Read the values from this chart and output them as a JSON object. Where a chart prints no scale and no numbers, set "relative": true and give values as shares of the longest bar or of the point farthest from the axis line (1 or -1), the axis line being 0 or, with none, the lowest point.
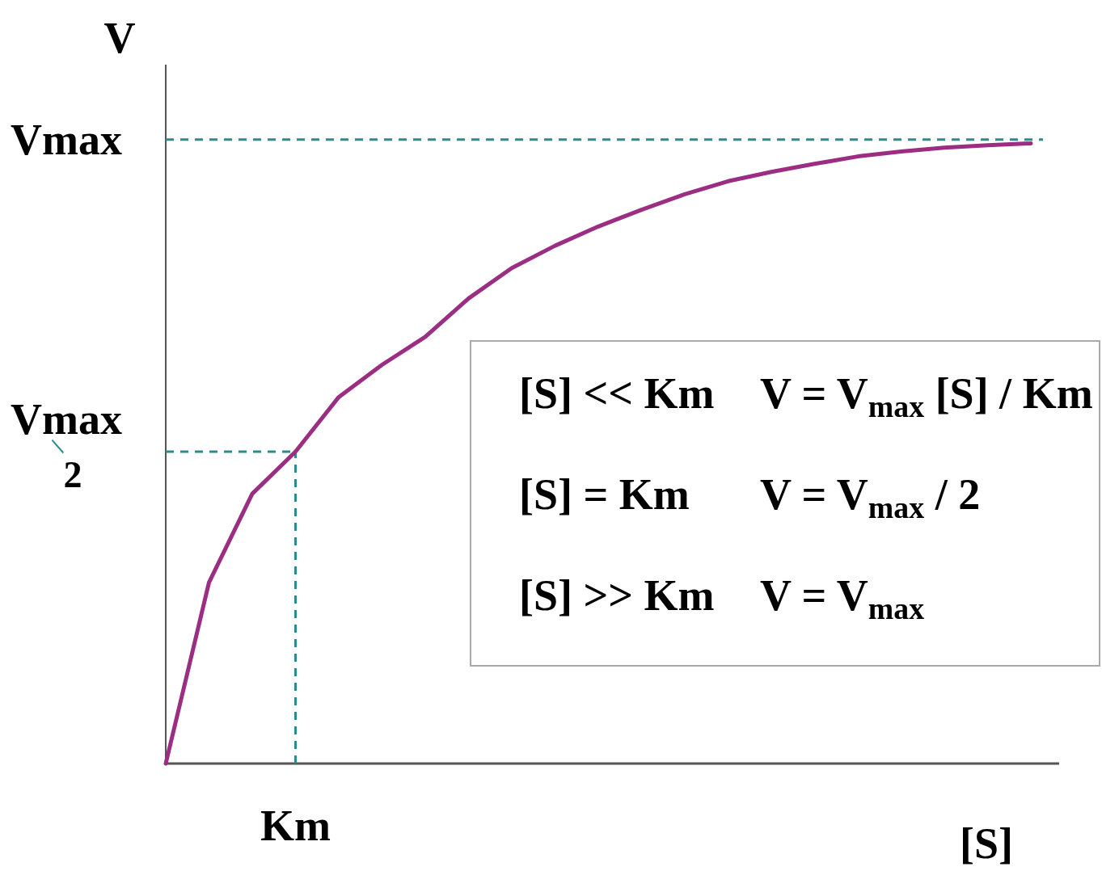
{
  "chart_data": {
    "type": "line",
    "xlabel": "[S]",
    "ylabel": "V",
    "categories": [
      null,
      null,
      null,
      null,
      null,
      null,
      null,
      null,
      null,
      null,
      null,
      null,
      null,
      null,
      null,
      null,
      null,
      null,
      null,
      null,
      null
    ],
    "relative": true,
    "series": [
      {
        "color": "#9b2d82",
        "values": [
          0,
          0.292,
          0.435,
          0.503,
          0.591,
          0.643,
          0.688,
          0.75,
          0.799,
          0.835,
          0.866,
          0.893,
          0.918,
          0.939,
          0.954,
          0.967,
          0.979,
          0.987,
          0.993,
          0.997,
          1
        ]
      }
    ],
    "ref_lines": [
      {
        "axis": "y",
        "value": 1.006,
        "label": "Vmax",
        "color": "#2e8b8b",
        "line_style": "dashed"
      },
      {
        "axis": "y",
        "value": 0.503,
        "label": "Vmax/2",
        "color": "#2e8b8b",
        "line_style": "dashed"
      }
    ],
    "annotations": [
      "Km",
      "[S] << Km",
      "V = V$_{max}$ [S] / Km",
      "[S] = Km",
      "V = V$_{max}$ / 2",
      "[S] >> Km",
      "V = V$_{max}$"
    ]
  }
}
